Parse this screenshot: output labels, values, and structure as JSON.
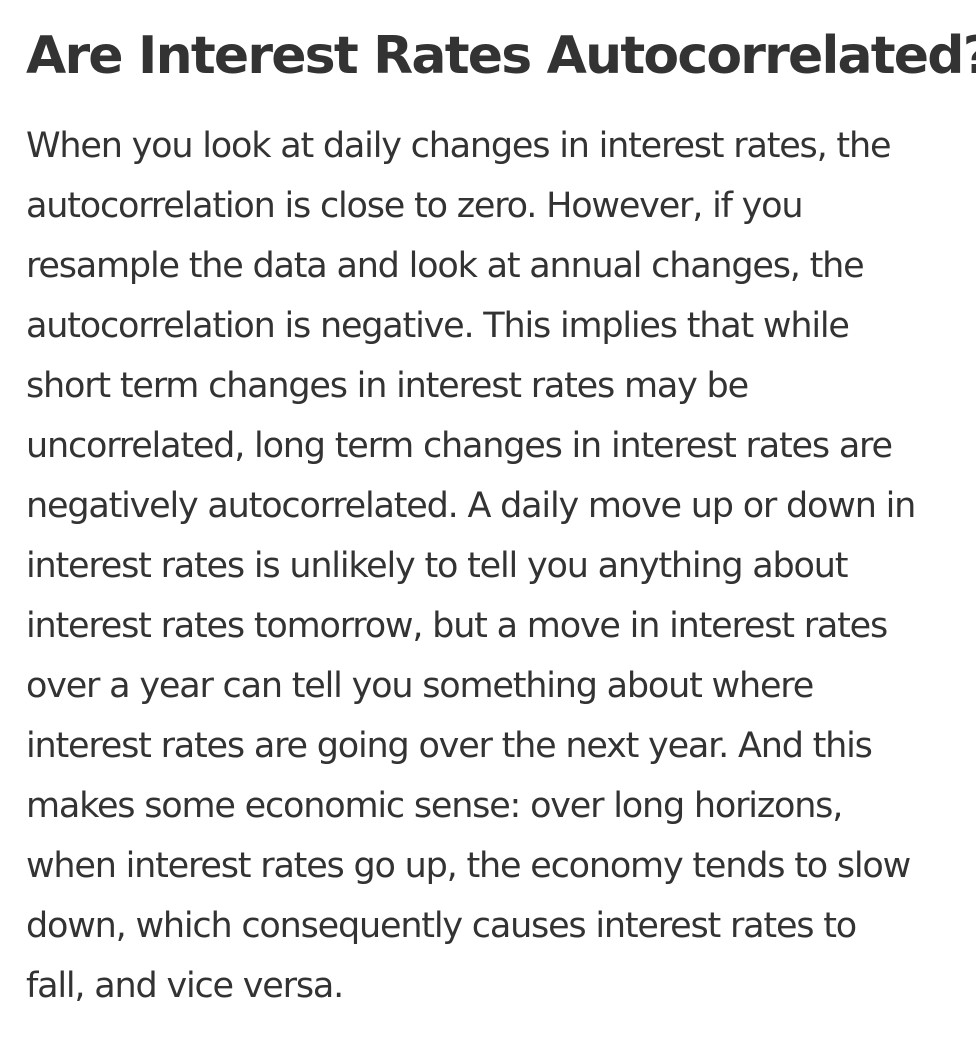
{
  "article": {
    "title": "Are Interest Rates Autocorrelated?",
    "paragraph_lines": [
      "When you look at daily changes in interest rates, the",
      "autocorrelation is close to zero. However, if you",
      "resample the data and look at annual changes, the",
      "autocorrelation is negative. This implies that while",
      "short term changes in interest rates may be",
      "uncorrelated, long term changes in interest rates are",
      "negatively autocorrelated. A daily move up or down in",
      "interest rates is unlikely to tell you anything about",
      "interest rates tomorrow, but a move in interest rates",
      "over a year can tell you something about where",
      "interest rates are going over the next year. And this",
      "makes some economic sense: over long horizons,",
      "when interest rates go up, the economy tends to slow",
      "down, which consequently causes interest rates to",
      "fall, and vice versa."
    ]
  }
}
